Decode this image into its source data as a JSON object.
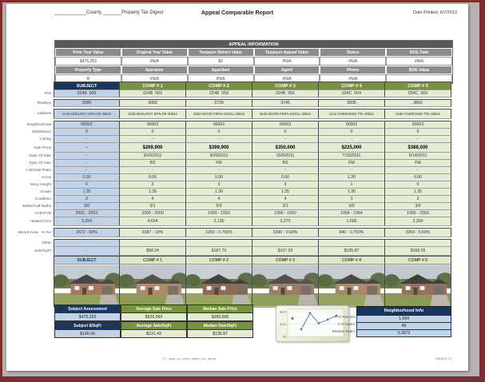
{
  "header": {
    "blank1": "____________",
    "county_label": "County",
    "blank2": "_______",
    "digest_label": "Property Tax Digest",
    "title": "Appeal Comparable Report",
    "date_printed": "Date Printed:  5/7/2013"
  },
  "appeal_info": {
    "title": "APPEAL INFORMATION",
    "row1_headers": [
      "Prior Year Value",
      "Original Year Value",
      "Taxpayer Return Value",
      "Taxpayer Appeal Value",
      "Status",
      "BOE Data"
    ],
    "row1_values": [
      "$475,253",
      "#N/A",
      "$0",
      "#N/A",
      "#N/A",
      "#N/A"
    ],
    "row2_headers": [
      "Property Type",
      "Appraiser",
      "Appellant",
      "Agent",
      "Phone",
      "BOE Value"
    ],
    "row2_values": [
      "R",
      "#N/A",
      "#N/A",
      "#N/A",
      "#N/A",
      ""
    ]
  },
  "comp_table": {
    "columns": [
      "SUBJECT",
      "COMP # 1",
      "COMP # 2",
      "COMP # 3",
      "COMP # 4",
      "COMP # 5"
    ],
    "rows": [
      {
        "label": "PIN",
        "values": [
          "024B  005",
          "024B  003",
          "024B  059",
          "024B  056",
          "024C  004",
          "024C  069"
        ],
        "gap": true
      },
      {
        "label": "Realkey",
        "values": [
          "3085",
          "3083",
          "3739",
          "3746",
          "3835",
          "3892"
        ],
        "gap": true
      },
      {
        "label": "Address",
        "variant": "addr",
        "values": [
          "2106 MCELROY MTN DR 30534",
          "2138 MCELROY MTN DR 30534",
          "3052 WOOD FERN KNOLL 30534",
          "2645 WOOD FERN KNOLL 30534",
          "2214 CHEROKEE TRL 30534",
          "3290 CHEROKEE TRL 30534"
        ],
        "gap": true
      },
      {
        "label": "Neighborhood",
        "values": [
          "00002",
          "00002",
          "00002",
          "00002",
          "00002",
          "00002"
        ]
      },
      {
        "label": "Subdivision",
        "values": [
          "0",
          "0",
          "0",
          "0",
          "0",
          "0"
        ]
      },
      {
        "label": "Listing",
        "values": [
          "-",
          "-",
          "-",
          "-",
          "-",
          "-"
        ]
      },
      {
        "label": "Sale Price",
        "variant": "price",
        "values": [
          "-",
          "$269,900",
          "$399,900",
          "$350,000",
          "$225,000",
          "$388,000"
        ]
      },
      {
        "label": "Date Of Sale",
        "values": [
          "-",
          "9/20/2011",
          "9/29/2011",
          "10/9/2011",
          "7/15/2011",
          "6/14/2011"
        ]
      },
      {
        "label": "Type Of Sale",
        "values": [
          "-",
          "BS",
          "FM",
          "BS",
          "FM",
          "FM"
        ]
      },
      {
        "label": "List/Sale Ratio",
        "values": [
          "-",
          "-",
          "-",
          "-",
          "-",
          "-"
        ]
      },
      {
        "label": "Acres",
        "values": [
          "0.00",
          "0.00",
          "0.00",
          "0.00",
          "1.20",
          "0.00"
        ]
      },
      {
        "label": "Story Height",
        "values": [
          "0",
          "3",
          "3",
          "3",
          "1",
          "0"
        ]
      },
      {
        "label": "Grade",
        "values": [
          "1.35",
          "1.35",
          "1.30",
          "1.35",
          "1.30",
          "1.35"
        ]
      },
      {
        "label": "Condition",
        "values": [
          "3",
          "4",
          "4",
          "4",
          "3",
          "3"
        ]
      },
      {
        "label": "Baths/Half Baths",
        "values": [
          "3/0",
          "3/1",
          "5/0",
          "3/1",
          "3/0",
          "3/0"
        ]
      },
      {
        "label": "AYB-EYB",
        "values": [
          "2001 - 2001",
          "2000 - 2000",
          "1993 - 1993",
          "1990 - 1992",
          "1994 - 1994",
          "1996 - 2000"
        ]
      },
      {
        "label": "Heated Area",
        "variant": "wide",
        "values": [
          "3,254",
          "4,634",
          "2,130",
          "3,270",
          "1,656",
          "2,306"
        ],
        "gap": true
      },
      {
        "label": "Bsmnt Area - % Fin",
        "variant": "wide",
        "values": [
          "2472 - 00%",
          "2087 - 10%",
          "1050 - 0.750%",
          "2390 - 0.60%",
          "840 - 0.750%",
          "2054 - 0.60%"
        ],
        "gap": true
      },
      {
        "label": "Other",
        "values": [
          "",
          "",
          "",
          "",
          "",
          ""
        ]
      },
      {
        "label": "Sale/SqFt",
        "variant": "wide",
        "values": [
          "-",
          "$58.24",
          "$187.75",
          "$107.03",
          "$135.87",
          "$168.26"
        ]
      }
    ]
  },
  "photo_strip": {
    "columns": [
      "SUBJECT",
      "COMP # 1",
      "COMP # 2",
      "COMP # 3",
      "COMP # 4",
      "COMP # 5"
    ],
    "photos": [
      "subject-house-photo",
      "comp1-house-photo",
      "comp2-house-photo",
      "comp3-house-photo",
      "comp4-house-photo",
      "comp5-house-photo"
    ]
  },
  "summary": {
    "headers_row1": [
      "Subject Assessment",
      "Average Sale Price",
      "Median Sale Price"
    ],
    "values_row1": [
      "$475,253",
      "$326,560",
      "$350,000"
    ],
    "headers_row2": [
      "Subject $/SqFt",
      "Average Sale/SqFt",
      "Median Sale/SqFt"
    ],
    "values_row2": [
      "$146.06",
      "$131.43",
      "$135.87"
    ]
  },
  "neighborhood_info": {
    "title": "Neighborhood Info",
    "rows": [
      {
        "label": "# of Parcels",
        "value": "1,694"
      },
      {
        "label": "# of Sales",
        "value": "45"
      },
      {
        "label": "Median Ratio",
        "value": "0.3972"
      }
    ]
  },
  "chart_data": {
    "type": "line",
    "title": "",
    "xlabel": "",
    "ylabel": "",
    "y_ticks": [
      "$200",
      "$100",
      "$0"
    ],
    "ylim": [
      0,
      220
    ],
    "grid": true,
    "legend": "none",
    "subject_point": {
      "x": 1,
      "value": 146.06,
      "color": "#c0504d",
      "name": "Subject $/SqFt"
    },
    "series": [
      {
        "name": "Comp Sale/SqFt",
        "color": "#4472a8",
        "x": [
          2,
          3,
          4,
          5,
          6
        ],
        "values": [
          58.24,
          187.75,
          107.03,
          135.87,
          168.26
        ]
      }
    ]
  },
  "footer": {
    "center": "C:\\...\\gaa_ca_comp_sheet_rev_report",
    "right": "GMASS-TC"
  },
  "colors": {
    "frame": "#7b2e2e",
    "matte": "#b4b1b1",
    "navy": "#17375e",
    "olive": "#77933c",
    "subject_fill": "#c2d3e8",
    "comp_fill": "#e4ecd3",
    "bar_gray": "#595959"
  }
}
